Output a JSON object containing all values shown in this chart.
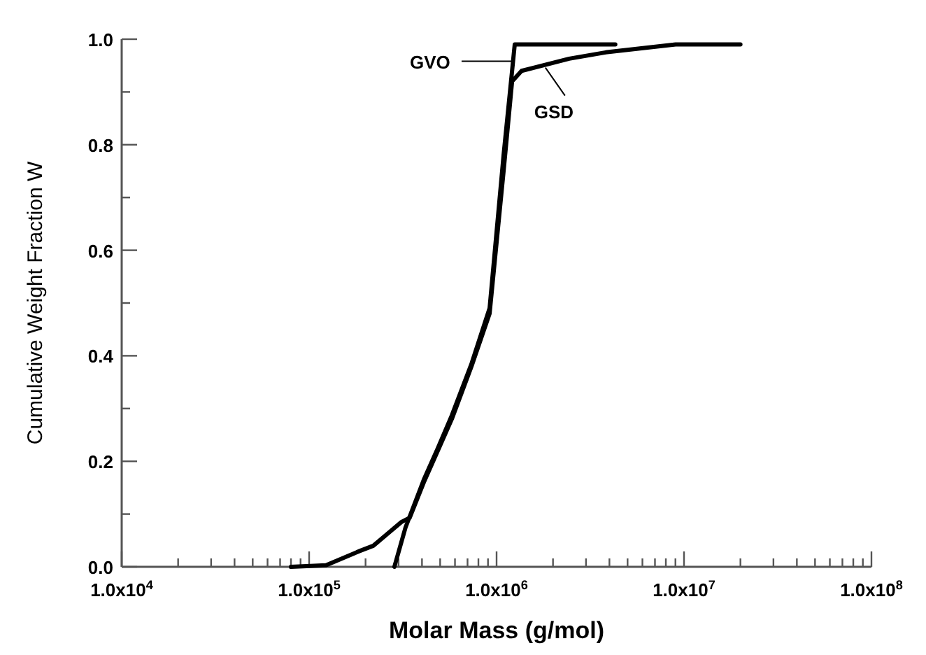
{
  "chart_data": {
    "type": "line",
    "xlabel": "Molar Mass (g/mol)",
    "ylabel": "Cumulative Weight Fraction W",
    "log": "x",
    "grid": false,
    "marker": "none",
    "line_style": "solid",
    "xlim": [
      10000,
      100000000
    ],
    "ylim": [
      0,
      1.0
    ],
    "xticks": [
      {
        "value": 10000,
        "label": "1.0x10$^{4}$"
      },
      {
        "value": 20000,
        "label": null
      },
      {
        "value": 30000,
        "label": null
      },
      {
        "value": 40000,
        "label": null
      },
      {
        "value": 50000,
        "label": null
      },
      {
        "value": 60000,
        "label": null
      },
      {
        "value": 70000,
        "label": null
      },
      {
        "value": 80000,
        "label": null
      },
      {
        "value": 90000,
        "label": null
      },
      {
        "value": 100000,
        "label": "1.0x10$^{5}$"
      },
      {
        "value": 200000,
        "label": null
      },
      {
        "value": 300000,
        "label": null
      },
      {
        "value": 400000,
        "label": null
      },
      {
        "value": 500000,
        "label": null
      },
      {
        "value": 600000,
        "label": null
      },
      {
        "value": 700000,
        "label": null
      },
      {
        "value": 800000,
        "label": null
      },
      {
        "value": 900000,
        "label": null
      },
      {
        "value": 1000000,
        "label": "1.0x10$^{6}$"
      },
      {
        "value": 2000000,
        "label": null
      },
      {
        "value": 3000000,
        "label": null
      },
      {
        "value": 4000000,
        "label": null
      },
      {
        "value": 5000000,
        "label": null
      },
      {
        "value": 6000000,
        "label": null
      },
      {
        "value": 7000000,
        "label": null
      },
      {
        "value": 8000000,
        "label": null
      },
      {
        "value": 9000000,
        "label": null
      },
      {
        "value": 10000000,
        "label": "1.0x10$^{7}$"
      },
      {
        "value": 20000000,
        "label": null
      },
      {
        "value": 30000000,
        "label": null
      },
      {
        "value": 40000000,
        "label": null
      },
      {
        "value": 50000000,
        "label": null
      },
      {
        "value": 60000000,
        "label": null
      },
      {
        "value": 70000000,
        "label": null
      },
      {
        "value": 80000000,
        "label": null
      },
      {
        "value": 90000000,
        "label": null
      },
      {
        "value": 100000000,
        "label": "1.0x10$^{8}$"
      }
    ],
    "yticks": [
      {
        "value": 0,
        "label": "0.0"
      },
      {
        "value": 0.1,
        "label": null
      },
      {
        "value": 0.2,
        "label": "0.2"
      },
      {
        "value": 0.3,
        "label": null
      },
      {
        "value": 0.4,
        "label": "0.4"
      },
      {
        "value": 0.5,
        "label": null
      },
      {
        "value": 0.6,
        "label": "0.6"
      },
      {
        "value": 0.7,
        "label": null
      },
      {
        "value": 0.8,
        "label": "0.8"
      },
      {
        "value": 0.9,
        "label": null
      },
      {
        "value": 1.0,
        "label": "1.0"
      }
    ],
    "series": [
      {
        "name": "GVO",
        "color": "#000000",
        "x": [
          285000,
          327000,
          409000,
          486000,
          577000,
          735000,
          918000,
          1090000,
          1210000,
          1250000,
          2000000,
          3000000,
          4300000
        ],
        "values": [
          0,
          0.075,
          0.165,
          0.225,
          0.287,
          0.385,
          0.49,
          0.78,
          0.94,
          0.99,
          0.99,
          0.99,
          0.99
        ]
      },
      {
        "name": "GSD",
        "color": "#000000",
        "x": [
          80000,
          123000,
          186000,
          220000,
          311000,
          344000,
          409000,
          486000,
          577000,
          735000,
          918000,
          1090000,
          1210000,
          1360000,
          2440000,
          3820000,
          9020000,
          20000000
        ],
        "values": [
          0,
          0.003,
          0.03,
          0.04,
          0.085,
          0.093,
          0.16,
          0.22,
          0.28,
          0.38,
          0.48,
          0.75,
          0.92,
          0.94,
          0.963,
          0.975,
          0.99,
          0.99
        ]
      }
    ]
  }
}
